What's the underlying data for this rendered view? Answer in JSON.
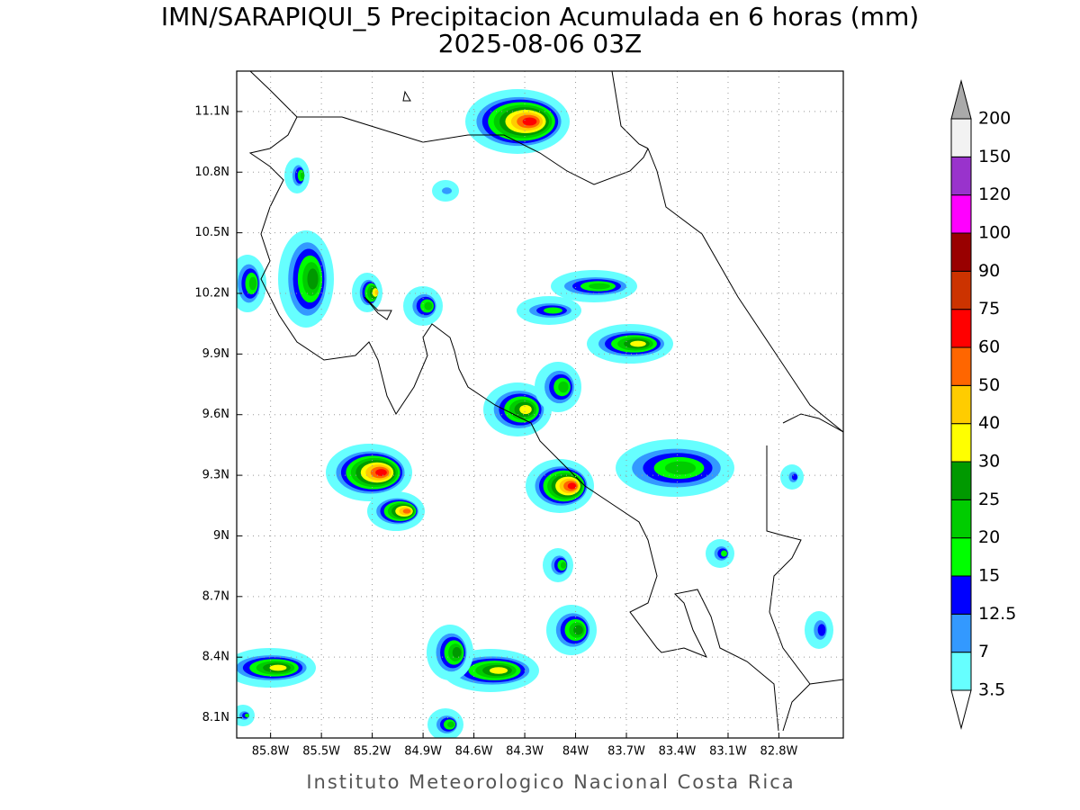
{
  "chart_data": {
    "type": "map",
    "title": "IMN/SARAPIQUI_5 Precipitacion Acumulada en 6 horas (mm)",
    "subtitle": "2025-08-06 03Z",
    "footer": "Instituto Meteorologico Nacional Costa Rica",
    "xlim": [
      -86.0,
      -82.42
    ],
    "ylim": [
      8.0,
      11.3
    ],
    "xticks": [
      {
        "value": -85.8,
        "label": "85.8W"
      },
      {
        "value": -85.5,
        "label": "85.5W"
      },
      {
        "value": -85.2,
        "label": "85.2W"
      },
      {
        "value": -84.9,
        "label": "84.9W"
      },
      {
        "value": -84.6,
        "label": "84.6W"
      },
      {
        "value": -84.3,
        "label": "84.3W"
      },
      {
        "value": -84.0,
        "label": "84W"
      },
      {
        "value": -83.7,
        "label": "83.7W"
      },
      {
        "value": -83.4,
        "label": "83.4W"
      },
      {
        "value": -83.1,
        "label": "83.1W"
      },
      {
        "value": -82.8,
        "label": "82.8W"
      }
    ],
    "yticks": [
      {
        "value": 8.1,
        "label": "8.1N"
      },
      {
        "value": 8.4,
        "label": "8.4N"
      },
      {
        "value": 8.7,
        "label": "8.7N"
      },
      {
        "value": 9.0,
        "label": "9N"
      },
      {
        "value": 9.3,
        "label": "9.3N"
      },
      {
        "value": 9.6,
        "label": "9.6N"
      },
      {
        "value": 9.9,
        "label": "9.9N"
      },
      {
        "value": 10.2,
        "label": "10.2N"
      },
      {
        "value": 10.5,
        "label": "10.5N"
      },
      {
        "value": 10.8,
        "label": "10.8N"
      },
      {
        "value": 11.1,
        "label": "11.1N"
      }
    ],
    "grid": true,
    "colorbar": {
      "levels": [
        3.5,
        7,
        12.5,
        15,
        20,
        25,
        30,
        40,
        50,
        60,
        75,
        90,
        100,
        120,
        150,
        200
      ],
      "colors": [
        "#66ffff",
        "#3399ff",
        "#0000ff",
        "#00ff00",
        "#00cc00",
        "#009900",
        "#ffff00",
        "#ffcc00",
        "#ff6600",
        "#ff0000",
        "#cc3300",
        "#990000",
        "#ff00ff",
        "#9933cc",
        "#f2f2f2"
      ],
      "under_color": "#ffffff",
      "over_color": "#aaaaaa"
    }
  }
}
